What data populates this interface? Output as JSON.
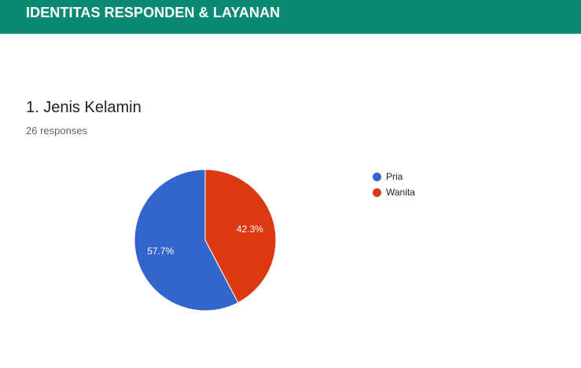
{
  "section": {
    "title": "IDENTITAS RESPONDEN & LAYANAN"
  },
  "question": {
    "title": "1. Jenis Kelamin",
    "responses": "26 responses"
  },
  "chart_data": {
    "type": "pie",
    "title": "",
    "categories": [
      "Pria",
      "Wanita"
    ],
    "values": [
      57.7,
      42.3
    ],
    "labels": [
      "57.7%",
      "42.3%"
    ],
    "colors": [
      "#3366cc",
      "#dc3912"
    ],
    "legend": "right"
  },
  "theme": {
    "header_color": "#0b8a73"
  }
}
